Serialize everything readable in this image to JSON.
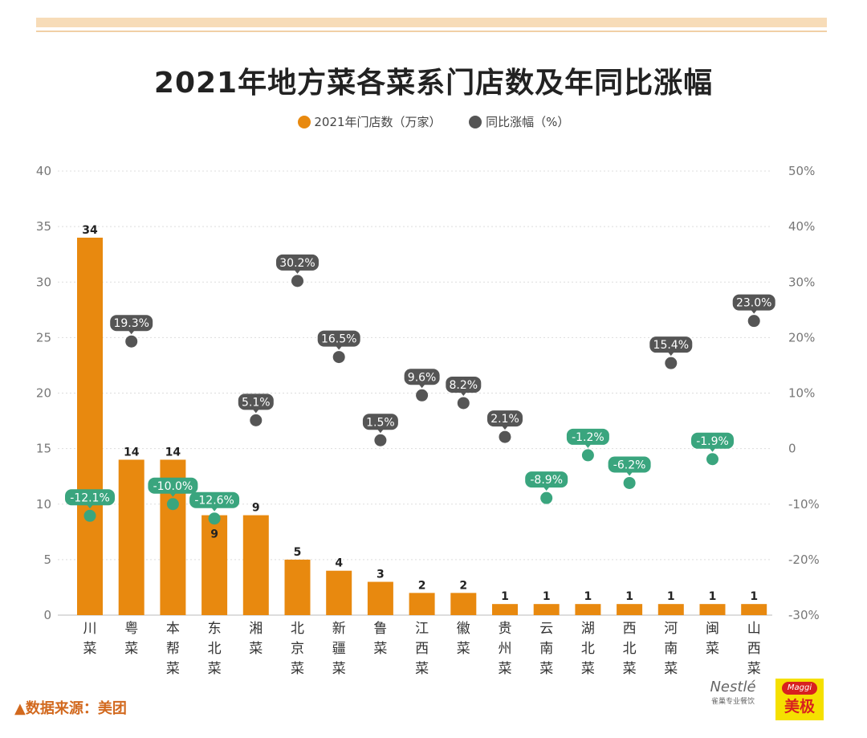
{
  "chart_data": {
    "type": "bar+scatter",
    "title": "2021年地方菜各菜系门店数及年同比涨幅",
    "categories": [
      "川菜",
      "粤菜",
      "本帮菜",
      "东北菜",
      "湘菜",
      "北京菜",
      "新疆菜",
      "鲁菜",
      "江西菜",
      "徽菜",
      "贵州菜",
      "云南菜",
      "湖北菜",
      "西北菜",
      "河南菜",
      "闽菜",
      "山西菜"
    ],
    "series": [
      {
        "name": "2021年门店数（万家）",
        "axis": "left",
        "type": "bar",
        "color": "#e8890f",
        "values": [
          34,
          14,
          14,
          9,
          9,
          5,
          4,
          3,
          2,
          2,
          1,
          1,
          1,
          1,
          1,
          1,
          1
        ]
      },
      {
        "name": "同比涨幅（%）",
        "axis": "right",
        "type": "scatter",
        "color": "#555555",
        "values": [
          -12.1,
          19.3,
          -10.0,
          -12.6,
          5.1,
          30.2,
          16.5,
          1.5,
          9.6,
          8.2,
          2.1,
          -8.9,
          -1.2,
          -6.2,
          15.4,
          -1.9,
          23.0
        ],
        "labels": [
          "-12.1%",
          "19.3%",
          "-10.0%",
          "-12.6%",
          "5.1%",
          "30.2%",
          "16.5%",
          "1.5%",
          "9.6%",
          "8.2%",
          "2.1%",
          "-8.9%",
          "-1.2%",
          "-6.2%",
          "15.4%",
          "-1.9%",
          "23.0%"
        ]
      }
    ],
    "negative_color": "#3aa57e",
    "ylim_left": [
      0,
      40
    ],
    "yticks_left": [
      "0",
      "5",
      "10",
      "15",
      "20",
      "25",
      "30",
      "35",
      "40"
    ],
    "ylim_right": [
      -30,
      50
    ],
    "yticks_right": [
      "-30%",
      "-20%",
      "-10%",
      "0",
      "10%",
      "20%",
      "30%",
      "40%",
      "50%"
    ],
    "grid": true,
    "legend": "top-center"
  },
  "source": "▲数据来源：美团",
  "logos": {
    "nestle": "Nestlé 雀巢专业餐饮",
    "maggi": "Maggi 美极"
  }
}
